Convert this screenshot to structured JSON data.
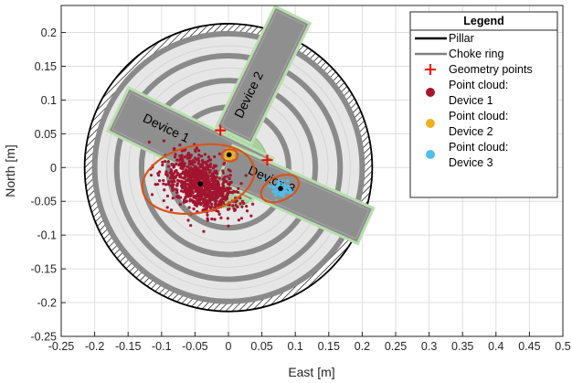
{
  "chart_data": {
    "type": "scatter",
    "title": "",
    "xlabel": "East [m]",
    "ylabel": "North [m]",
    "xlim": [
      -0.25,
      0.5
    ],
    "ylim": [
      -0.25,
      0.24
    ],
    "xticks": [
      -0.25,
      -0.2,
      -0.15,
      -0.1,
      -0.05,
      0,
      0.05,
      0.1,
      0.15,
      0.2,
      0.25,
      0.3,
      0.35,
      0.4,
      0.45,
      0.5
    ],
    "xtick_labels": [
      "-0.25",
      "-0.2",
      "-0.15",
      "-0.1",
      "-0.05",
      "0",
      "0.05",
      "0.1",
      "0.15",
      "0.2",
      "0.25",
      "0.3",
      "0.35",
      "0.4",
      "0.45",
      "0.5"
    ],
    "yticks": [
      -0.25,
      -0.2,
      -0.15,
      -0.1,
      -0.05,
      0,
      0.05,
      0.1,
      0.15,
      0.2
    ],
    "ytick_labels": [
      "-0.25",
      "-0.2",
      "-0.15",
      "-0.1",
      "-0.05",
      "0",
      "0.05",
      "0.1",
      "0.15",
      "0.2"
    ],
    "grid": true,
    "legend": {
      "title": "Legend",
      "position": "top-right",
      "entries": [
        {
          "label": "Pillar",
          "kind": "line",
          "color": "#000000"
        },
        {
          "label": "Choke ring",
          "kind": "line",
          "color": "#808080"
        },
        {
          "label": "Geometry points",
          "kind": "plus",
          "color": "#ff0000"
        },
        {
          "label": "Point cloud:",
          "label2": "Device 1",
          "kind": "dot",
          "color": "#a2142f"
        },
        {
          "label": "Point cloud:",
          "label2": "Device 2",
          "kind": "dot",
          "color": "#edb120"
        },
        {
          "label": "Point cloud:",
          "label2": "Device 3",
          "kind": "dot",
          "color": "#4dbeee"
        }
      ]
    },
    "pillar_radius": 0.215,
    "choke_rings": [
      0.2,
      0.167,
      0.13,
      0.09
    ],
    "devices": [
      {
        "label": "Device 1",
        "center": [
          -0.057,
          0.034
        ],
        "length": 0.24,
        "width": 0.072,
        "angle_deg": -26
      },
      {
        "label": "Device 2",
        "center": [
          0.052,
          0.137
        ],
        "length": 0.2,
        "width": 0.058,
        "angle_deg": 64
      },
      {
        "label": "Device 3",
        "center": [
          0.1,
          -0.04
        ],
        "length": 0.23,
        "width": 0.058,
        "angle_deg": -24
      }
    ],
    "geometry_points": [
      [
        -0.012,
        0.055
      ],
      [
        0.058,
        0.011
      ]
    ],
    "ellipses": [
      {
        "center": [
          -0.045,
          -0.017
        ],
        "rx": 0.085,
        "ry": 0.05,
        "angle_deg": 12,
        "color": "#d95319"
      },
      {
        "center": [
          0.002,
          0.018
        ],
        "rx": 0.012,
        "ry": 0.009,
        "angle_deg": 0,
        "color": "#d95319"
      },
      {
        "center": [
          0.077,
          -0.031
        ],
        "rx": 0.03,
        "ry": 0.018,
        "angle_deg": 25,
        "color": "#d95319"
      }
    ],
    "point_cloud_centers": [
      [
        -0.042,
        -0.024
      ],
      [
        0.001,
        0.019
      ],
      [
        0.078,
        -0.031
      ]
    ]
  },
  "colors": {
    "device_fill": "#8f8f8f",
    "device_border": "#b8dfae",
    "choke_ring": "#8a8a8a",
    "disk_fill": "#e6e6e6",
    "inner_fill": "#a9cfa0",
    "cloud_device1": "#a2142f",
    "cloud_device2": "#edb120",
    "cloud_device3": "#4dbeee",
    "ellipse": "#d95319",
    "geometry_point": "#ff0000"
  }
}
